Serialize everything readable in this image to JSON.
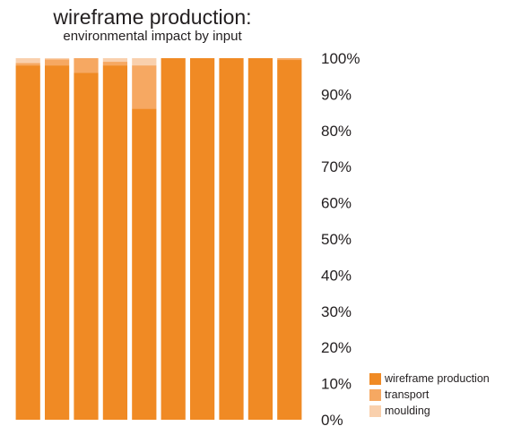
{
  "chart_data": {
    "type": "bar",
    "stacked": true,
    "title": "wireframe production:",
    "subtitle": "environmental impact by input",
    "xlabel": "",
    "ylabel": "",
    "ylim": [
      0,
      100
    ],
    "y_ticks": [
      "0%",
      "10%",
      "20%",
      "30%",
      "40%",
      "50%",
      "60%",
      "70%",
      "80%",
      "90%",
      "100%"
    ],
    "y_axis_side": "right",
    "grid": false,
    "legend_position": "bottom-right",
    "categories": [
      "",
      "",
      "",
      "",
      "",
      "",
      "",
      "",
      "",
      ""
    ],
    "series": [
      {
        "name": "wireframe production",
        "color": "#f08a24",
        "values": [
          98,
          98,
          96,
          98,
          86,
          100,
          100,
          100,
          100,
          99.5
        ]
      },
      {
        "name": "transport",
        "color": "#f6a862",
        "values": [
          0.7,
          1.7,
          4,
          1,
          12,
          0,
          0,
          0,
          0,
          0.5
        ]
      },
      {
        "name": "moulding",
        "color": "#f9d0ad",
        "values": [
          1.3,
          0.3,
          0,
          1,
          2,
          0,
          0,
          0,
          0,
          0
        ]
      }
    ]
  }
}
